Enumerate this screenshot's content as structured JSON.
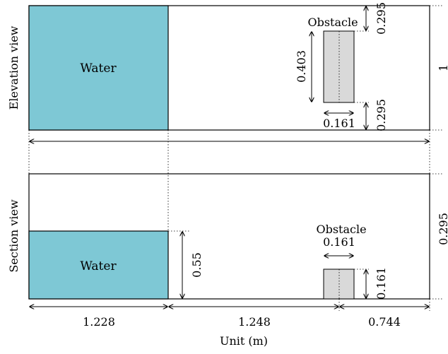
{
  "elevation": {
    "view_label": "Elevation view",
    "water_label": "Water",
    "obstacle_label": "Obstacle",
    "dim_top_gap": "0.295",
    "dim_obstacle_length": "0.403",
    "dim_bottom_gap": "0.295",
    "dim_obstacle_width": "0.161",
    "dim_tank_width": "1"
  },
  "section": {
    "view_label": "Section view",
    "water_label": "Water",
    "obstacle_label": "Obstacle",
    "dim_obstacle_width": "0.161",
    "dim_obstacle_height": "0.161",
    "dim_water_depth": "0.55",
    "dim_tank_height": "0.295"
  },
  "bottom_dims": {
    "seg1": "1.228",
    "seg2": "1.248",
    "seg3": "0.744"
  },
  "axis_label": "Unit (m)",
  "colors": {
    "water": "#7ec8d5",
    "obstacle": "#d9d9d9",
    "line": "#000000"
  }
}
